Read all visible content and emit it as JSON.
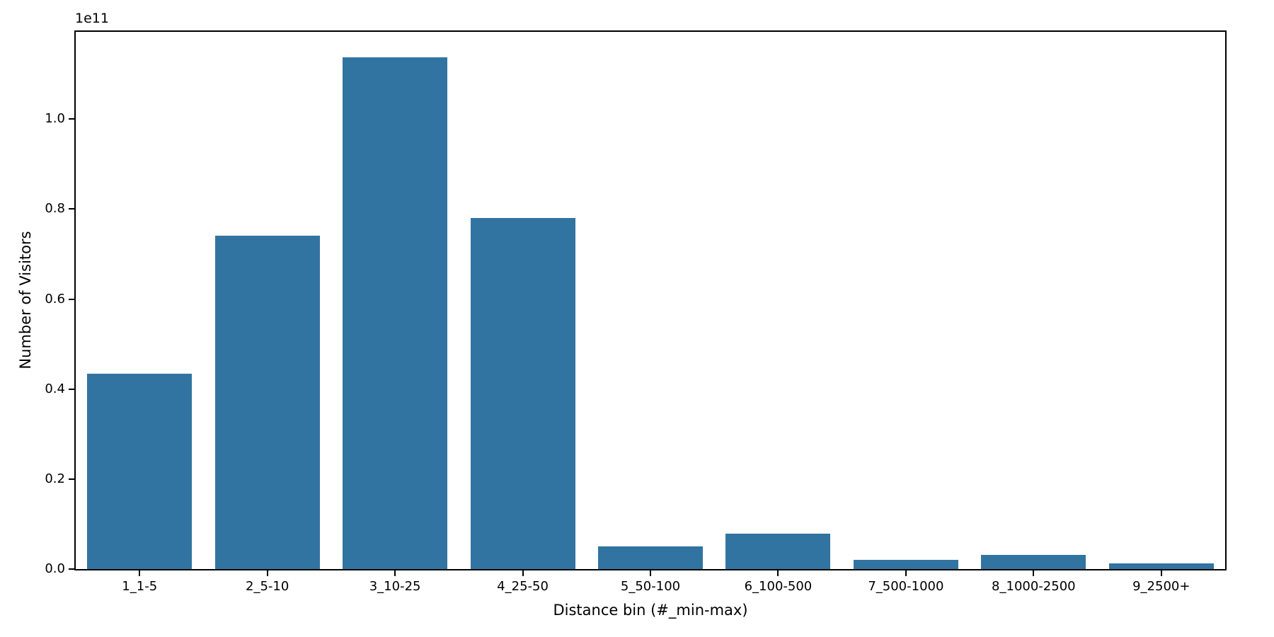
{
  "figure": {
    "background": "#ffffff",
    "axis_color": "#000000"
  },
  "chart_data": {
    "type": "bar",
    "title": "",
    "xlabel": "Distance bin (#_min-max)",
    "ylabel": "Number of Visitors",
    "offset_text": "1e11",
    "categories": [
      "1_1-5",
      "2_5-10",
      "3_10-25",
      "4_25-50",
      "5_50-100",
      "6_100-500",
      "7_500-1000",
      "8_1000-2500",
      "9_2500+"
    ],
    "values": [
      43400000000,
      74100000000,
      113700000000,
      78000000000,
      5000000000,
      7900000000,
      2100000000,
      3100000000,
      1200000000
    ],
    "bar_color": "#3274a1",
    "ylim": [
      0,
      119400000000
    ],
    "yticks": [
      0,
      20000000000,
      40000000000,
      60000000000,
      80000000000,
      100000000000
    ],
    "ytick_labels": [
      "0.0",
      "0.2",
      "0.4",
      "0.6",
      "0.8",
      "1.0"
    ],
    "grid": false,
    "legend": null,
    "bar_width_fraction": 0.82
  }
}
